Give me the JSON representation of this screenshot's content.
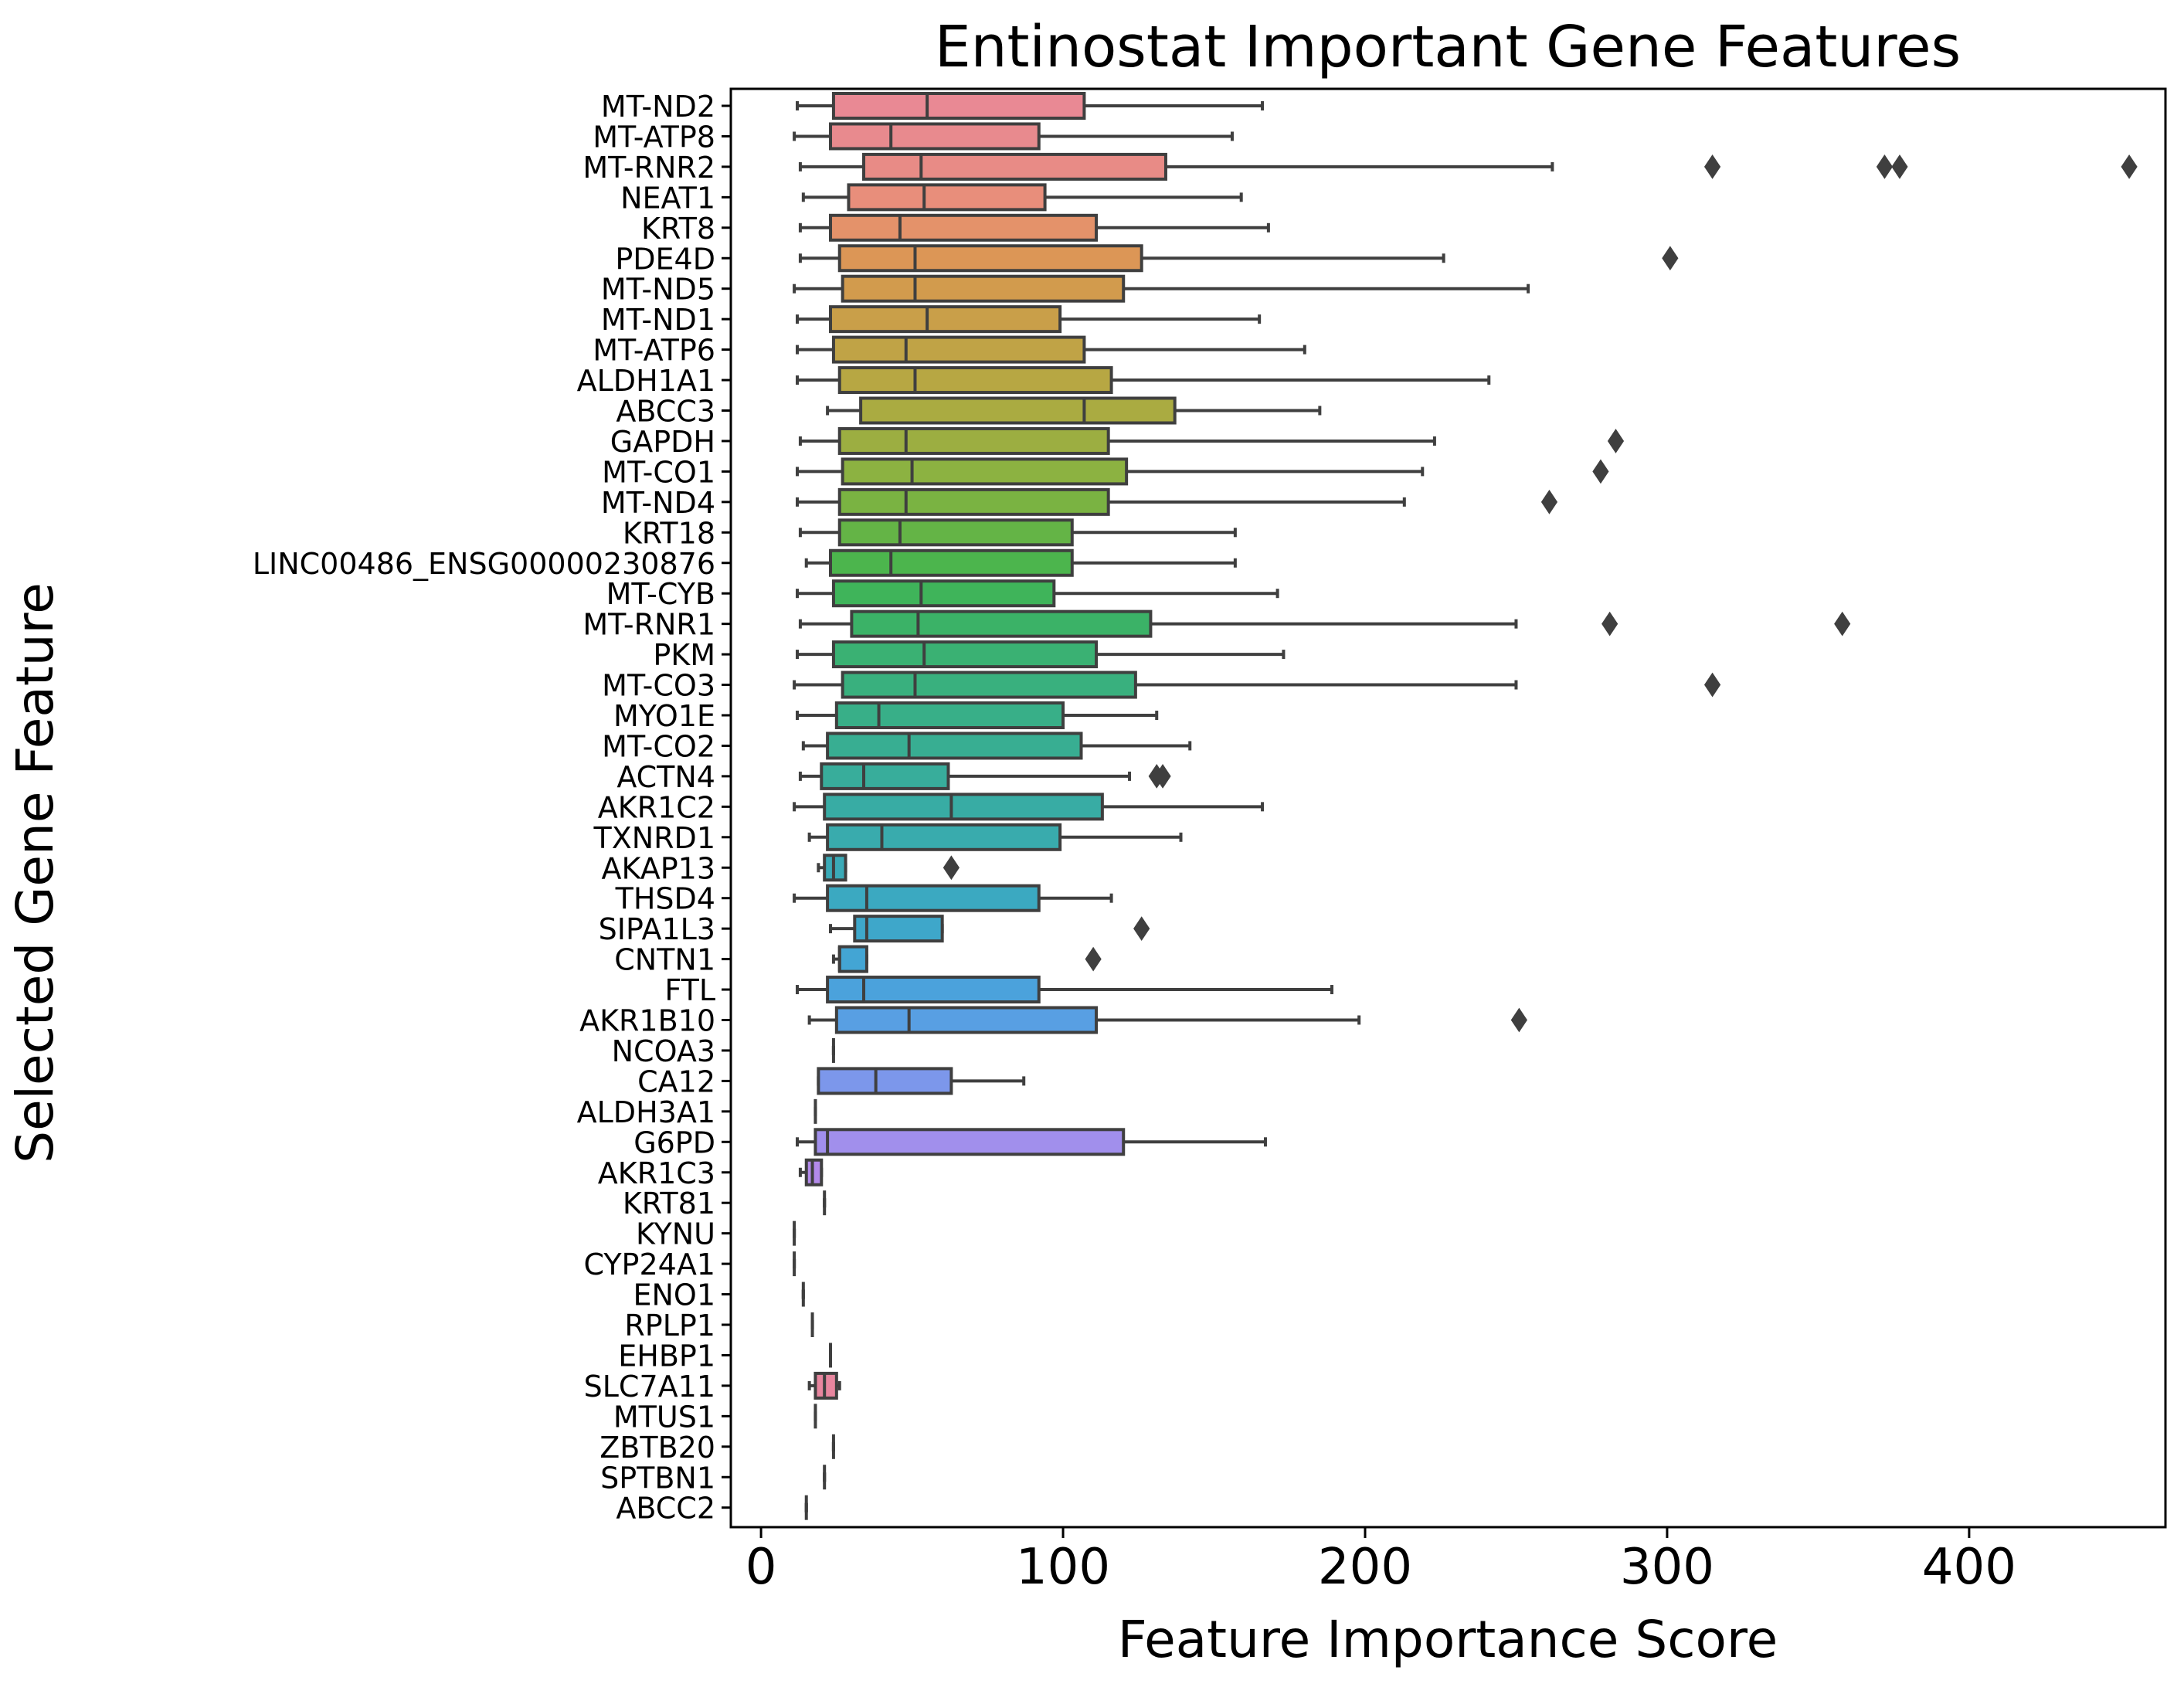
{
  "chart_data": {
    "type": "boxplot",
    "orientation": "horizontal",
    "title": "Entinostat Important Gene Features",
    "xlabel": "Feature Importance Score",
    "ylabel": "Selected Gene Feature",
    "xlim": [
      -10,
      465
    ],
    "xticks": [
      0,
      100,
      200,
      300,
      400
    ],
    "grid": false,
    "features": [
      {
        "name": "MT-ND2",
        "stats": [
          12,
          24,
          55,
          107,
          166
        ],
        "outliers": [],
        "color": "#e98994"
      },
      {
        "name": "MT-ATP8",
        "stats": [
          11,
          23,
          43,
          92,
          156
        ],
        "outliers": [],
        "color": "#e88a8e"
      },
      {
        "name": "MT-RNR2",
        "stats": [
          13,
          34,
          53,
          134,
          262
        ],
        "outliers": [
          315,
          372,
          377,
          453
        ],
        "color": "#e88b86"
      },
      {
        "name": "NEAT1",
        "stats": [
          14,
          29,
          54,
          94,
          159
        ],
        "outliers": [],
        "color": "#e88e7b"
      },
      {
        "name": "KRT8",
        "stats": [
          13,
          23,
          46,
          111,
          168
        ],
        "outliers": [],
        "color": "#e4926a"
      },
      {
        "name": "PDE4D",
        "stats": [
          13,
          26,
          51,
          126,
          226
        ],
        "outliers": [
          301
        ],
        "color": "#dc9656"
      },
      {
        "name": "MT-ND5",
        "stats": [
          11,
          27,
          51,
          120,
          254
        ],
        "outliers": [],
        "color": "#d29b4d"
      },
      {
        "name": "MT-ND1",
        "stats": [
          12,
          23,
          55,
          99,
          165
        ],
        "outliers": [],
        "color": "#c99f49"
      },
      {
        "name": "MT-ATP6",
        "stats": [
          12,
          24,
          48,
          107,
          180
        ],
        "outliers": [],
        "color": "#c0a346"
      },
      {
        "name": "ALDH1A1",
        "stats": [
          12,
          26,
          51,
          116,
          241
        ],
        "outliers": [],
        "color": "#b7a743"
      },
      {
        "name": "ABCC3",
        "stats": [
          22,
          33,
          107,
          137,
          185
        ],
        "outliers": [],
        "color": "#aaab41"
      },
      {
        "name": "GAPDH",
        "stats": [
          13,
          26,
          48,
          115,
          223
        ],
        "outliers": [
          283
        ],
        "color": "#9cae41"
      },
      {
        "name": "MT-CO1",
        "stats": [
          12,
          27,
          50,
          121,
          219
        ],
        "outliers": [
          278
        ],
        "color": "#8cb241"
      },
      {
        "name": "MT-ND4",
        "stats": [
          12,
          26,
          48,
          115,
          213
        ],
        "outliers": [
          261
        ],
        "color": "#7ab342"
      },
      {
        "name": "KRT18",
        "stats": [
          13,
          26,
          46,
          103,
          157
        ],
        "outliers": [],
        "color": "#64b446"
      },
      {
        "name": "LINC00486_ENSG00000230876",
        "stats": [
          15,
          23,
          43,
          103,
          157
        ],
        "outliers": [],
        "color": "#4cb54d"
      },
      {
        "name": "MT-CYB",
        "stats": [
          12,
          24,
          53,
          97,
          171
        ],
        "outliers": [],
        "color": "#3fb45a"
      },
      {
        "name": "MT-RNR1",
        "stats": [
          13,
          30,
          52,
          129,
          250
        ],
        "outliers": [
          281,
          358
        ],
        "color": "#3bb267"
      },
      {
        "name": "PKM",
        "stats": [
          12,
          24,
          54,
          111,
          173
        ],
        "outliers": [],
        "color": "#3ab173"
      },
      {
        "name": "MT-CO3",
        "stats": [
          11,
          27,
          51,
          124,
          250
        ],
        "outliers": [
          315
        ],
        "color": "#39b07e"
      },
      {
        "name": "MYO1E",
        "stats": [
          12,
          25,
          39,
          100,
          131
        ],
        "outliers": [],
        "color": "#38af88"
      },
      {
        "name": "MT-CO2",
        "stats": [
          14,
          22,
          49,
          106,
          142
        ],
        "outliers": [],
        "color": "#38ae92"
      },
      {
        "name": "ACTN4",
        "stats": [
          13,
          20,
          34,
          62,
          122
        ],
        "outliers": [
          131,
          133
        ],
        "color": "#38ad9b"
      },
      {
        "name": "AKR1C2",
        "stats": [
          11,
          21,
          63,
          113,
          166
        ],
        "outliers": [],
        "color": "#38aca4"
      },
      {
        "name": "TXNRD1",
        "stats": [
          16,
          22,
          40,
          99,
          139
        ],
        "outliers": [],
        "color": "#39abad"
      },
      {
        "name": "AKAP13",
        "stats": [
          19,
          21,
          24,
          28,
          28
        ],
        "outliers": [
          63
        ],
        "color": "#3aaab7"
      },
      {
        "name": "THSD4",
        "stats": [
          11,
          22,
          35,
          92,
          116
        ],
        "outliers": [],
        "color": "#3ba9c1"
      },
      {
        "name": "SIPA1L3",
        "stats": [
          23,
          31,
          35,
          60,
          60
        ],
        "outliers": [
          126
        ],
        "color": "#3ea7ca"
      },
      {
        "name": "CNTN1",
        "stats": [
          24,
          26,
          26,
          35,
          35
        ],
        "outliers": [
          110
        ],
        "color": "#43a5d4"
      },
      {
        "name": "FTL",
        "stats": [
          12,
          22,
          34,
          92,
          189
        ],
        "outliers": [],
        "color": "#4ba2dc"
      },
      {
        "name": "AKR1B10",
        "stats": [
          16,
          25,
          49,
          111,
          198
        ],
        "outliers": [
          251
        ],
        "color": "#589fe3"
      },
      {
        "name": "NCOA3",
        "stats": [
          24,
          24,
          24,
          24,
          24
        ],
        "outliers": [],
        "color": "#699be7"
      },
      {
        "name": "CA12",
        "stats": [
          19,
          19,
          38,
          63,
          87
        ],
        "outliers": [],
        "color": "#7c97eb"
      },
      {
        "name": "ALDH3A1",
        "stats": [
          18,
          18,
          18,
          18,
          18
        ],
        "outliers": [],
        "color": "#8f93ec"
      },
      {
        "name": "G6PD",
        "stats": [
          12,
          18,
          22,
          120,
          167
        ],
        "outliers": [],
        "color": "#a18fec"
      },
      {
        "name": "AKR1C3",
        "stats": [
          13,
          15,
          17,
          20,
          20
        ],
        "outliers": [],
        "color": "#b38aea"
      },
      {
        "name": "KRT81",
        "stats": [
          21,
          21,
          21,
          21,
          21
        ],
        "outliers": [],
        "color": "#c385e6"
      },
      {
        "name": "KYNU",
        "stats": [
          11,
          11,
          11,
          11,
          11
        ],
        "outliers": [],
        "color": "#d280df"
      },
      {
        "name": "CYP24A1",
        "stats": [
          11,
          11,
          11,
          11,
          11
        ],
        "outliers": [],
        "color": "#de7cd6"
      },
      {
        "name": "ENO1",
        "stats": [
          14,
          14,
          14,
          14,
          14
        ],
        "outliers": [],
        "color": "#e47fc6"
      },
      {
        "name": "RPLP1",
        "stats": [
          17,
          17,
          17,
          17,
          17
        ],
        "outliers": [],
        "color": "#e782b8"
      },
      {
        "name": "EHBP1",
        "stats": [
          23,
          23,
          23,
          23,
          23
        ],
        "outliers": [],
        "color": "#e884ab"
      },
      {
        "name": "SLC7A11",
        "stats": [
          16,
          18,
          21,
          25,
          26
        ],
        "outliers": [],
        "color": "#e8869f"
      },
      {
        "name": "MTUS1",
        "stats": [
          18,
          18,
          18,
          18,
          18
        ],
        "outliers": [],
        "color": "#e98894"
      },
      {
        "name": "ZBTB20",
        "stats": [
          24,
          24,
          24,
          24,
          24
        ],
        "outliers": [],
        "color": "#e9898e"
      },
      {
        "name": "SPTBN1",
        "stats": [
          21,
          21,
          21,
          21,
          21
        ],
        "outliers": [],
        "color": "#e98a8a"
      },
      {
        "name": "ABCC2",
        "stats": [
          15,
          15,
          15,
          15,
          15
        ],
        "outliers": [],
        "color": "#e98b86"
      }
    ]
  }
}
